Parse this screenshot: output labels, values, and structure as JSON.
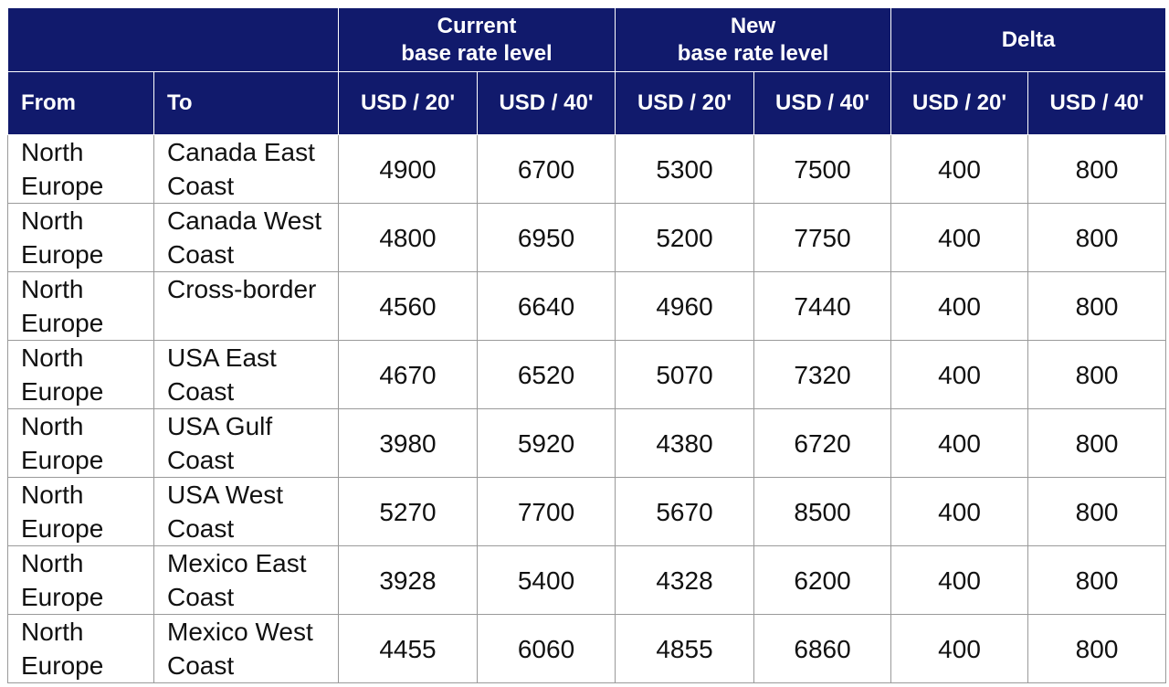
{
  "table": {
    "group_headers": [
      "Current\nbase rate level",
      "New\nbase rate level",
      "Delta"
    ],
    "column_headers": [
      "From",
      "To",
      "USD / 20'",
      "USD / 40'",
      "USD / 20'",
      "USD / 40'",
      "USD / 20'",
      "USD / 40'"
    ],
    "rows": [
      [
        "North Europe",
        "Canada East Coast",
        4900,
        6700,
        5300,
        7500,
        400,
        800
      ],
      [
        "North Europe",
        "Canada West Coast",
        4800,
        6950,
        5200,
        7750,
        400,
        800
      ],
      [
        "North Europe",
        "Cross-border",
        4560,
        6640,
        4960,
        7440,
        400,
        800
      ],
      [
        "North Europe",
        "USA East Coast",
        4670,
        6520,
        5070,
        7320,
        400,
        800
      ],
      [
        "North Europe",
        "USA Gulf Coast",
        3980,
        5920,
        4380,
        6720,
        400,
        800
      ],
      [
        "North Europe",
        "USA West Coast",
        5270,
        7700,
        5670,
        8500,
        400,
        800
      ],
      [
        "North Europe",
        "Mexico East Coast",
        3928,
        5400,
        4328,
        6200,
        400,
        800
      ],
      [
        "North Europe",
        "Mexico West Coast",
        4455,
        6060,
        4855,
        6860,
        400,
        800
      ]
    ]
  }
}
